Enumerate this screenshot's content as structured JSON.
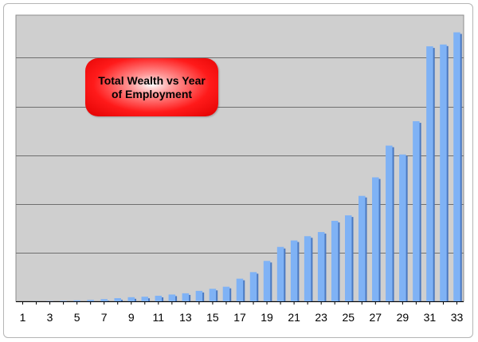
{
  "chart_data": {
    "type": "bar",
    "title": "Total Wealth vs Year of Employment",
    "xlabel": "",
    "ylabel": "",
    "categories": [
      "1",
      "2",
      "3",
      "4",
      "5",
      "6",
      "7",
      "8",
      "9",
      "10",
      "11",
      "12",
      "13",
      "14",
      "15",
      "16",
      "17",
      "18",
      "19",
      "20",
      "21",
      "22",
      "23",
      "24",
      "25",
      "26",
      "27",
      "28",
      "29",
      "30",
      "31",
      "32",
      "33"
    ],
    "tick_labels_shown": [
      "1",
      "3",
      "5",
      "7",
      "9",
      "11",
      "13",
      "15",
      "17",
      "19",
      "21",
      "23",
      "25",
      "27",
      "29",
      "31",
      "33"
    ],
    "series": [
      {
        "values": [
          0.0,
          0.1,
          0.2,
          0.4,
          0.8,
          1.2,
          1.8,
          2.6,
          3.4,
          3.8,
          4.6,
          5.6,
          6.6,
          8.6,
          10.3,
          12.0,
          18.6,
          24.0,
          33.2,
          44.7,
          50.0,
          53.5,
          56.9,
          66.1,
          70.6,
          86.6,
          101.8,
          127.9,
          120.6,
          147.9,
          209.4,
          210.9,
          220.9
        ],
        "color": "#7fb2f5"
      }
    ],
    "ylim": [
      0,
      235
    ],
    "y_gridlines": [
      0,
      40,
      80,
      120,
      160,
      200
    ],
    "y_tick_labels": false,
    "grid": true,
    "legend": "none",
    "colors": {
      "plot_background": "#cfcfcf",
      "bar": "#7fb2f5",
      "bar_shadow": "#4a78c0",
      "title_box": "#ff1a1a"
    }
  }
}
